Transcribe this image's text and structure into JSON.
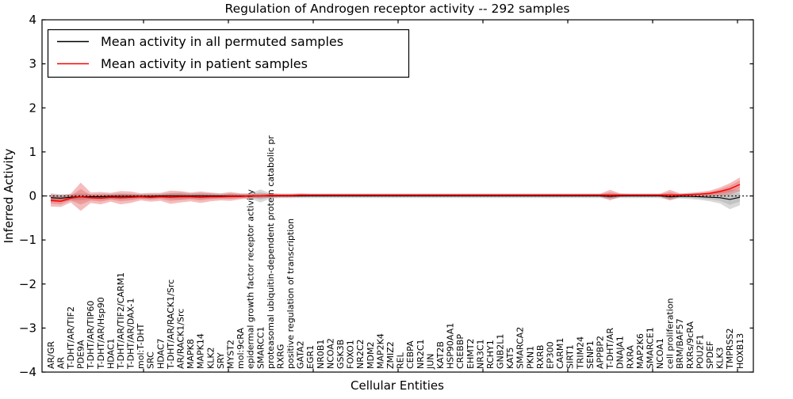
{
  "chart_data": {
    "type": "line",
    "title": "Regulation of Androgen receptor activity -- 292 samples",
    "xlabel": "Cellular Entities",
    "ylabel": "Inferred Activity",
    "ylim": [
      -4,
      4
    ],
    "yticks": [
      "4",
      "3",
      "2",
      "1",
      "0",
      "−1",
      "−2",
      "−3",
      "−4"
    ],
    "grid": false,
    "zero_line": true,
    "legend_position": "upper left",
    "colors": {
      "permuted_line": "#000000",
      "permuted_band": "#787878",
      "patient_line": "#ff0000",
      "patient_band": "#dc3232",
      "background": "#ffffff"
    },
    "categories": [
      "AR/GR",
      "AR",
      "T-DHT/AR/TIF2",
      "PDE9A",
      "T-DHT/AR/TIP60",
      "T-DHT/AR/Hsp90",
      "HDAC1",
      "T-DHT/AR/TIF2/CARM1",
      "T-DHT/AR/DAX-1",
      "mol:T-DHT",
      "SRC",
      "HDAC7",
      "T-DHT/AR/RACK1/Src",
      "AR/RACK1/Src",
      "MAPK8",
      "MAPK14",
      "KLK2",
      "SRY",
      "MYST2",
      "mol:9cRA",
      "epidermal growth factor receptor activity",
      "SMARCC1",
      "proteasomal ubiquitin-dependent protein catabolic pr",
      "RXRG",
      "positive regulation of transcription",
      "GATA2",
      "EGR1",
      "NR0B1",
      "NCOA2",
      "GSK3B",
      "FOXO1",
      "NR2C2",
      "MDM2",
      "MAP2K4",
      "ZMIZ2",
      "REL",
      "CEBPA",
      "NR2C1",
      "JUN",
      "KAT2B",
      "HSP90AA1",
      "CREBBP",
      "EHMT2",
      "NR3C1",
      "RCHY1",
      "GNB2L1",
      "KAT5",
      "SMARCA2",
      "PKN1",
      "RXRB",
      "EP300",
      "CARM1",
      "SIRT1",
      "TRIM24",
      "SENP1",
      "APPBP2",
      "T-DHT/AR",
      "DNAJA1",
      "RXRA",
      "MAP2K6",
      "SMARCE1",
      "NCOA1",
      "cell proliferation",
      "BRM/BAF57",
      "RXRs/9cRA",
      "POU2F1",
      "SPDEF",
      "KLK3",
      "TMPRSS2",
      "HOXB13"
    ],
    "series": [
      {
        "name": "Mean activity in all permuted samples",
        "color": "#000000",
        "band_color": "#787878",
        "values": [
          -0.04,
          -0.05,
          -0.03,
          -0.02,
          -0.02,
          -0.02,
          -0.01,
          -0.01,
          -0.01,
          -0.01,
          -0.01,
          0.0,
          0.0,
          0.0,
          0.0,
          0.0,
          0.0,
          0.0,
          0.0,
          0.0,
          0.0,
          0.0,
          0.0,
          0.0,
          0.0,
          0.0,
          0.0,
          0.0,
          0.0,
          0.0,
          0.0,
          0.0,
          0.0,
          0.0,
          0.0,
          0.0,
          0.0,
          0.0,
          0.0,
          0.0,
          0.0,
          0.0,
          0.0,
          0.0,
          0.0,
          0.0,
          0.0,
          0.0,
          0.0,
          0.0,
          0.0,
          0.0,
          0.0,
          0.0,
          0.0,
          0.0,
          -0.01,
          0.0,
          0.0,
          0.0,
          0.0,
          0.0,
          -0.02,
          -0.01,
          -0.01,
          -0.02,
          -0.03,
          -0.04,
          -0.08,
          -0.03
        ],
        "band_halfwidth": [
          0.1,
          0.09,
          0.07,
          0.08,
          0.06,
          0.07,
          0.06,
          0.07,
          0.06,
          0.05,
          0.06,
          0.05,
          0.07,
          0.08,
          0.06,
          0.07,
          0.06,
          0.05,
          0.06,
          0.05,
          0.06,
          0.15,
          0.06,
          0.05,
          0.05,
          0.05,
          0.05,
          0.05,
          0.05,
          0.05,
          0.05,
          0.05,
          0.05,
          0.05,
          0.05,
          0.05,
          0.05,
          0.05,
          0.05,
          0.05,
          0.05,
          0.05,
          0.05,
          0.05,
          0.05,
          0.05,
          0.05,
          0.05,
          0.05,
          0.05,
          0.05,
          0.05,
          0.05,
          0.05,
          0.05,
          0.05,
          0.06,
          0.05,
          0.05,
          0.05,
          0.05,
          0.05,
          0.07,
          0.05,
          0.06,
          0.07,
          0.09,
          0.13,
          0.22,
          0.18
        ]
      },
      {
        "name": "Mean activity in patient samples",
        "color": "#ff0000",
        "band_color": "#dc3232",
        "values": [
          -0.1,
          -0.12,
          -0.05,
          -0.02,
          -0.04,
          -0.05,
          -0.03,
          -0.04,
          -0.03,
          -0.02,
          -0.03,
          -0.02,
          -0.03,
          -0.02,
          -0.02,
          -0.03,
          -0.02,
          -0.02,
          -0.01,
          -0.01,
          0.0,
          0.0,
          0.01,
          0.01,
          0.01,
          0.02,
          0.02,
          0.02,
          0.02,
          0.02,
          0.02,
          0.02,
          0.02,
          0.02,
          0.02,
          0.02,
          0.02,
          0.02,
          0.02,
          0.02,
          0.02,
          0.02,
          0.02,
          0.02,
          0.02,
          0.02,
          0.02,
          0.02,
          0.02,
          0.02,
          0.02,
          0.02,
          0.02,
          0.02,
          0.02,
          0.02,
          0.02,
          0.02,
          0.02,
          0.02,
          0.02,
          0.02,
          0.02,
          0.02,
          0.03,
          0.04,
          0.06,
          0.1,
          0.16,
          0.26
        ],
        "band_halfwidth": [
          0.14,
          0.13,
          0.1,
          0.32,
          0.12,
          0.14,
          0.1,
          0.15,
          0.13,
          0.08,
          0.1,
          0.09,
          0.15,
          0.13,
          0.1,
          0.13,
          0.1,
          0.08,
          0.1,
          0.07,
          0.05,
          0.05,
          0.05,
          0.04,
          0.04,
          0.04,
          0.03,
          0.03,
          0.03,
          0.03,
          0.03,
          0.03,
          0.03,
          0.03,
          0.03,
          0.03,
          0.03,
          0.03,
          0.03,
          0.03,
          0.03,
          0.03,
          0.03,
          0.03,
          0.03,
          0.03,
          0.03,
          0.03,
          0.03,
          0.03,
          0.03,
          0.03,
          0.03,
          0.03,
          0.03,
          0.03,
          0.12,
          0.04,
          0.03,
          0.03,
          0.03,
          0.03,
          0.12,
          0.04,
          0.04,
          0.05,
          0.06,
          0.09,
          0.13,
          0.16
        ]
      }
    ]
  }
}
